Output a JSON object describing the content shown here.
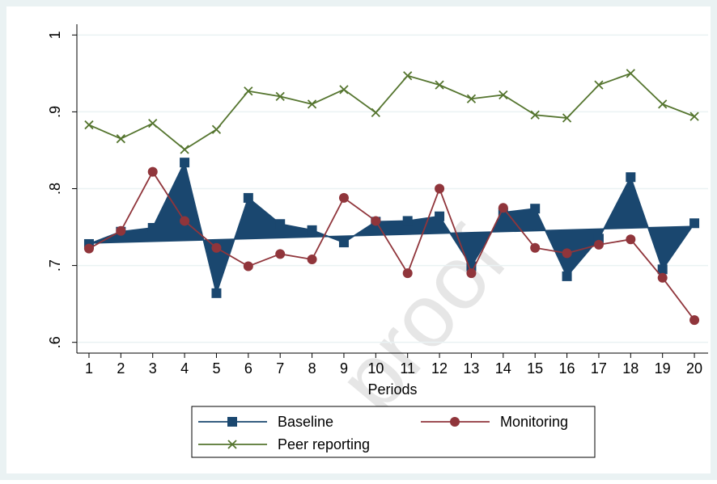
{
  "chart_data": {
    "type": "line",
    "x_label": "Periods",
    "x": [
      1,
      2,
      3,
      4,
      5,
      6,
      7,
      8,
      9,
      10,
      11,
      12,
      13,
      14,
      15,
      16,
      17,
      18,
      19,
      20
    ],
    "xlim": [
      0.62,
      20.43
    ],
    "xticks": [
      1,
      2,
      3,
      4,
      5,
      6,
      7,
      8,
      9,
      10,
      11,
      12,
      13,
      14,
      15,
      16,
      17,
      18,
      19,
      20
    ],
    "ylim": [
      0.586,
      1.014
    ],
    "yticks": [
      {
        "value": 0.6,
        "label": ".6"
      },
      {
        "value": 0.7,
        "label": ".7"
      },
      {
        "value": 0.8,
        "label": ".8"
      },
      {
        "value": 0.9,
        "label": ".9"
      },
      1
    ],
    "grid": true,
    "series": [
      {
        "name": "Baseline",
        "color": "#1a476f",
        "marker": "square",
        "values": [
          0.728,
          0.744,
          0.749,
          0.834,
          0.664,
          0.788,
          0.754,
          0.746,
          0.73,
          0.757,
          0.758,
          0.764,
          0.699,
          0.769,
          0.774,
          0.686,
          0.735,
          0.815,
          0.695,
          0.755
        ],
        "trend_x": [
          1,
          20
        ],
        "trend_values": [
          0.729,
          0.751
        ]
      },
      {
        "name": "Monitoring",
        "color": "#90353b",
        "marker": "circle",
        "values": [
          0.722,
          0.745,
          0.822,
          0.758,
          0.723,
          0.699,
          0.715,
          0.708,
          0.788,
          0.758,
          0.69,
          0.8,
          0.69,
          0.775,
          0.723,
          0.716,
          0.727,
          0.734,
          0.684,
          0.629
        ]
      },
      {
        "name": "Peer reporting",
        "color": "#55752f",
        "marker": "x",
        "values": [
          0.883,
          0.865,
          0.885,
          0.851,
          0.877,
          0.927,
          0.92,
          0.91,
          0.929,
          0.899,
          0.947,
          0.935,
          0.917,
          0.922,
          0.896,
          0.892,
          0.935,
          0.95,
          0.91,
          0.894
        ]
      }
    ],
    "watermark": "proof"
  }
}
